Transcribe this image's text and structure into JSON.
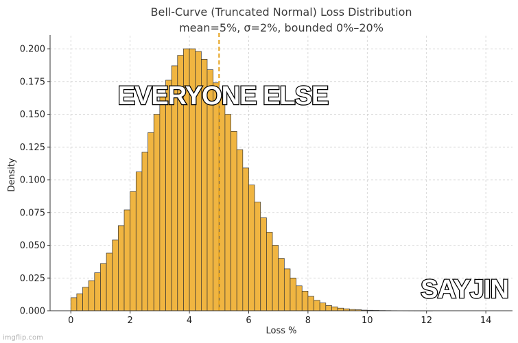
{
  "chart_data": {
    "type": "bar",
    "title": "Bell-Curve (Truncated Normal) Loss Distribution",
    "subtitle": "mean=5%, σ=2%, bounded 0%–20%",
    "xlabel": "Loss %",
    "ylabel": "Density",
    "xlim": [
      -0.7,
      14.9
    ],
    "ylim": [
      0,
      0.21
    ],
    "x_ticks": [
      "0",
      "2",
      "4",
      "6",
      "8",
      "10",
      "12",
      "14"
    ],
    "y_ticks": [
      "0.000",
      "0.025",
      "0.050",
      "0.075",
      "0.100",
      "0.125",
      "0.150",
      "0.175",
      "0.200"
    ],
    "grid": true,
    "bar_color": "#F0B541",
    "edge_color": "#333333",
    "mean_line": {
      "x": 5,
      "color": "#E6A11A",
      "style": "dashed"
    },
    "bin_width": 0.2,
    "bin_starts": [
      0,
      0.2,
      0.4,
      0.6,
      0.8,
      1.0,
      1.2,
      1.4,
      1.6,
      1.8,
      2.0,
      2.2,
      2.4,
      2.6,
      2.8,
      3.0,
      3.2,
      3.4,
      3.6,
      3.8,
      4.0,
      4.2,
      4.4,
      4.6,
      4.8,
      5.0,
      5.2,
      5.4,
      5.6,
      5.8,
      6.0,
      6.2,
      6.4,
      6.6,
      6.8,
      7.0,
      7.2,
      7.4,
      7.6,
      7.8,
      8.0,
      8.2,
      8.4,
      8.6,
      8.8,
      9.0,
      9.2,
      9.4,
      9.6,
      9.8,
      10.0,
      10.2,
      10.4,
      10.6,
      10.8,
      11.0,
      11.2,
      11.4,
      11.6,
      11.8,
      12.0
    ],
    "values": [
      0.01,
      0.013,
      0.018,
      0.023,
      0.029,
      0.036,
      0.044,
      0.054,
      0.065,
      0.077,
      0.091,
      0.106,
      0.121,
      0.136,
      0.15,
      0.164,
      0.176,
      0.187,
      0.195,
      0.2,
      0.2,
      0.198,
      0.192,
      0.184,
      0.174,
      0.163,
      0.15,
      0.137,
      0.123,
      0.109,
      0.096,
      0.083,
      0.071,
      0.06,
      0.05,
      0.04,
      0.032,
      0.025,
      0.019,
      0.015,
      0.011,
      0.008,
      0.006,
      0.004,
      0.003,
      0.002,
      0.0015,
      0.001,
      0.0008,
      0.0005,
      0.0004,
      0.0003,
      0.0002,
      0.00015,
      0.0001,
      8e-05,
      6e-05,
      4e-05,
      3e-05,
      2e-05,
      1e-05
    ]
  },
  "captions": {
    "top": "EVERYONE ELSE",
    "bottom_right": "SAYJIN"
  },
  "watermark": "imgflip.com"
}
